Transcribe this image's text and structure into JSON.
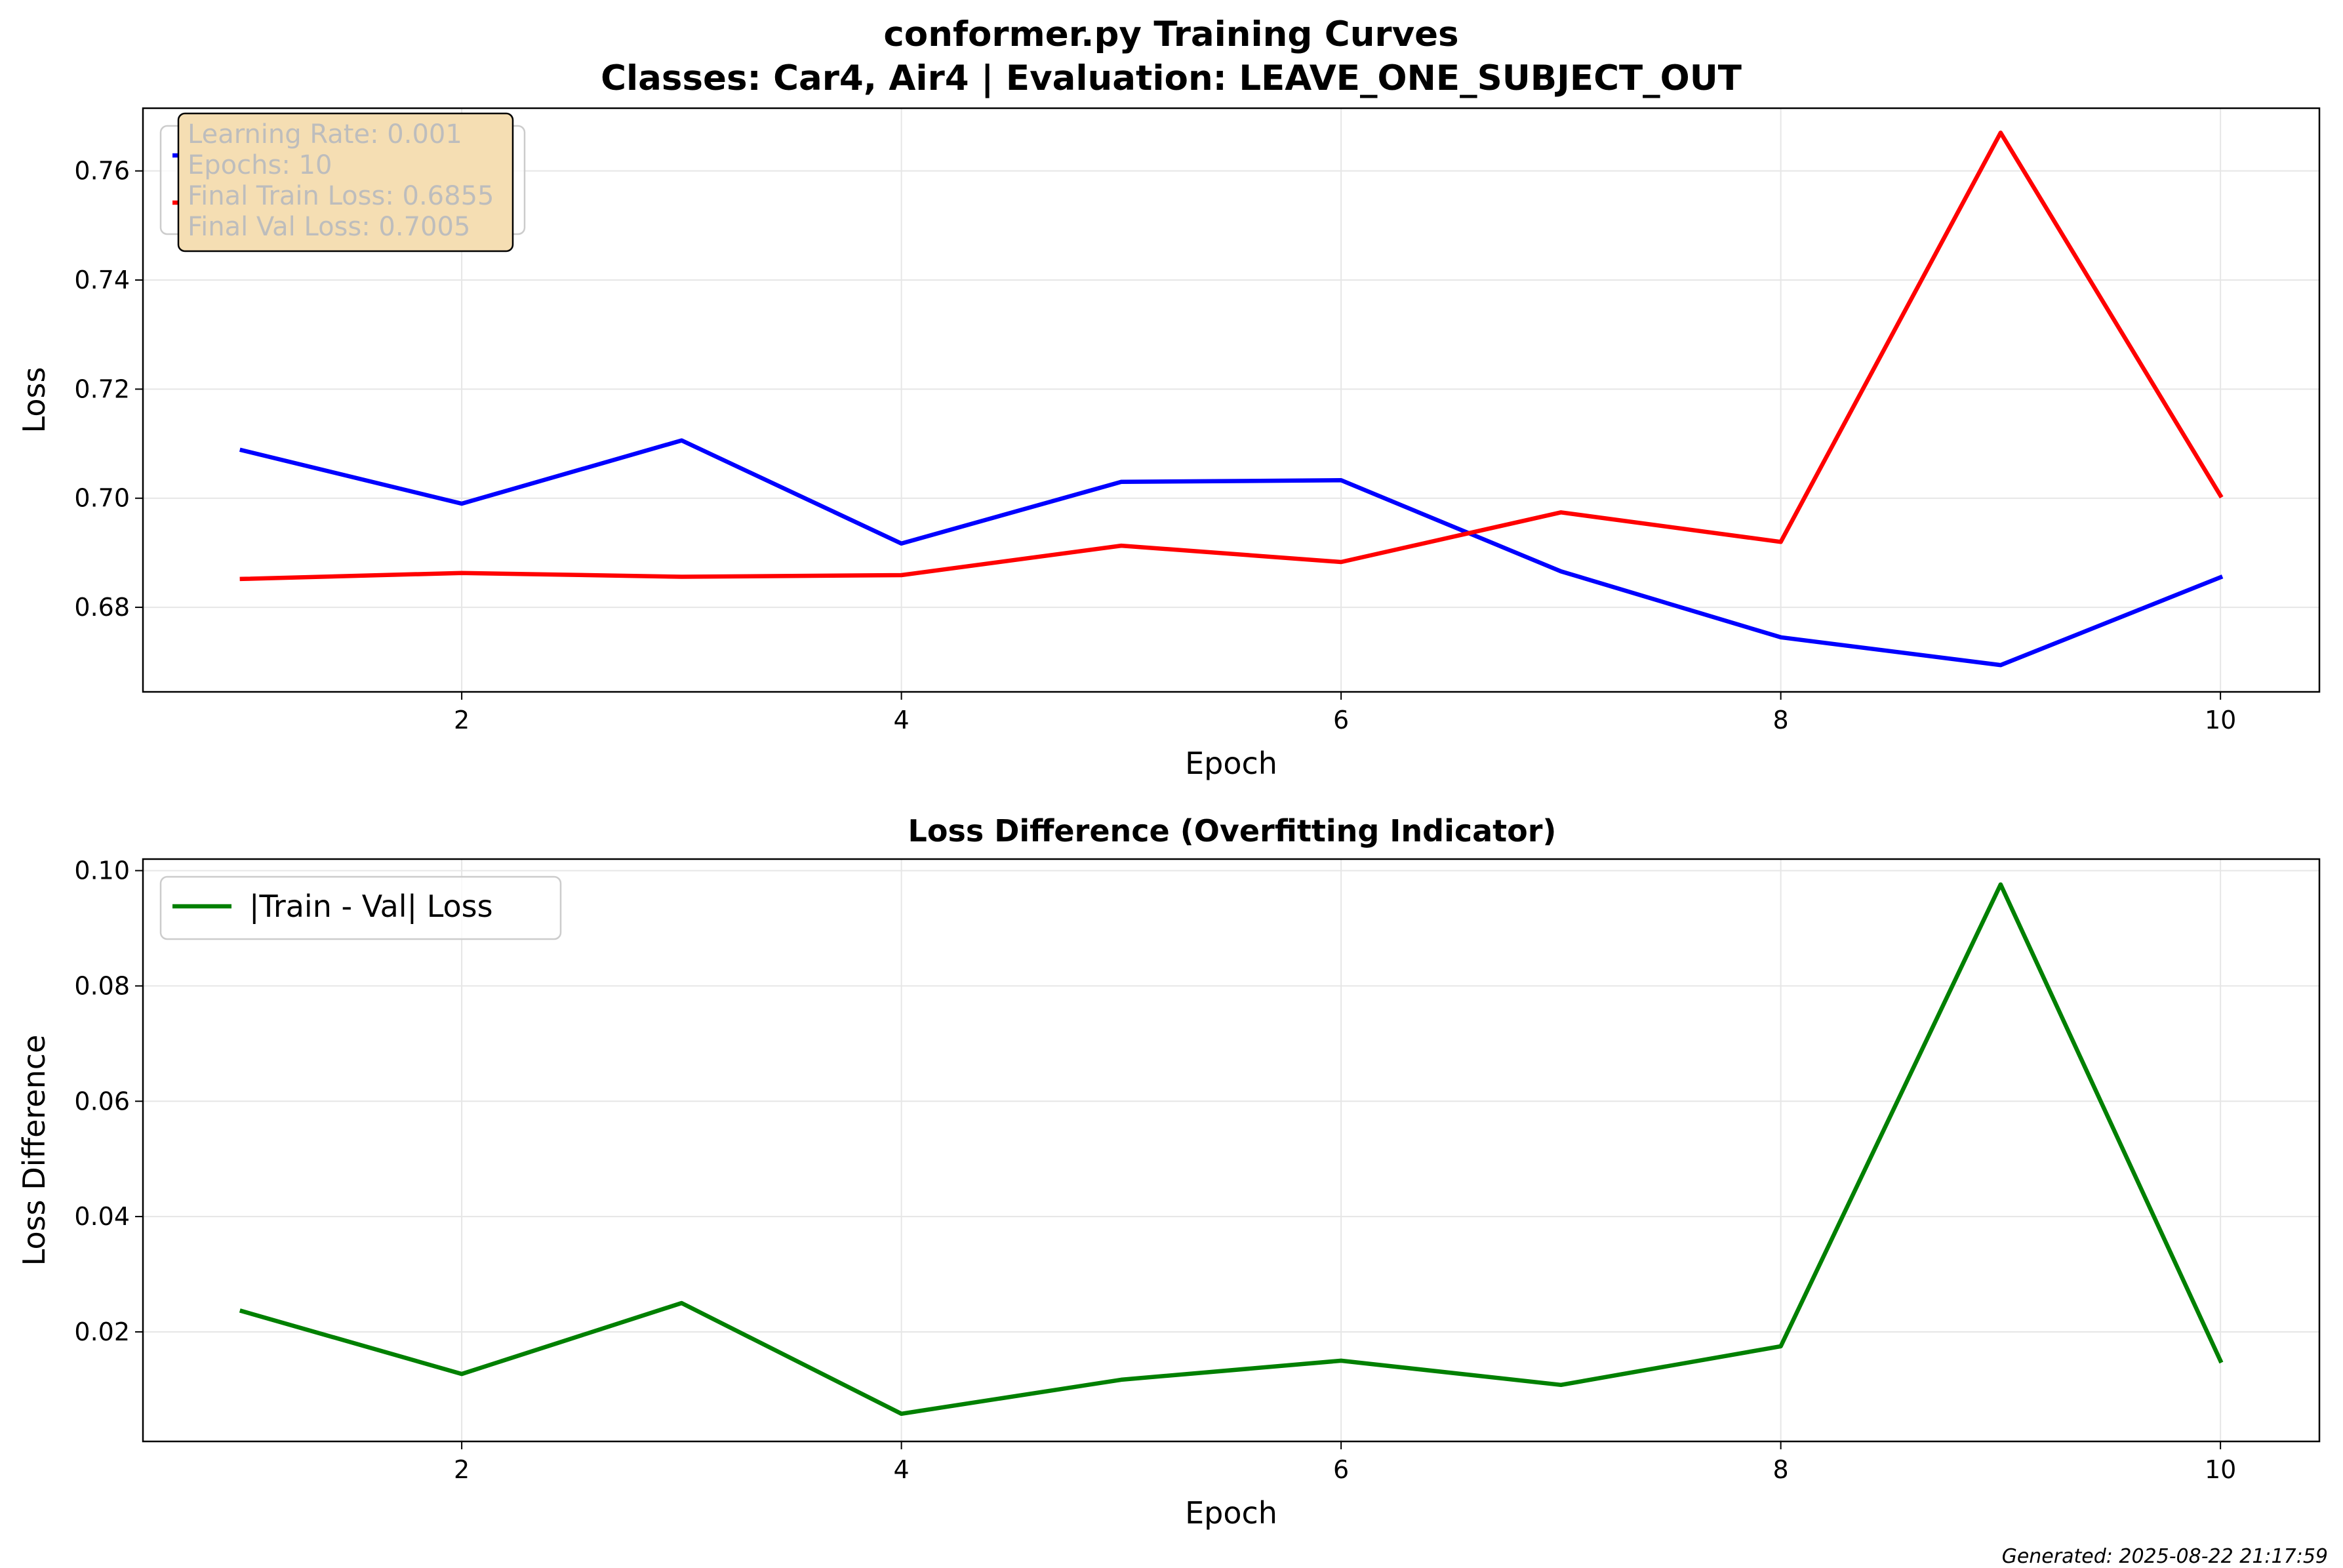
{
  "figure": {
    "title_line1": "conformer.py Training Curves",
    "title_line2": "Classes: Car4, Air4 | Evaluation: LEAVE_ONE_SUBJECT_OUT",
    "footer": "Generated: 2025-08-22 21:17:59"
  },
  "info_box": {
    "lines": [
      "Learning Rate: 0.001",
      "Epochs: 10",
      "Final Train Loss: 0.6855",
      "Final Val Loss: 0.7005"
    ],
    "background": "#f5deb3"
  },
  "chart_data": [
    {
      "type": "line",
      "title": "",
      "xlabel": "Epoch",
      "ylabel": "Loss",
      "xlim": [
        0.55,
        10.45
      ],
      "ylim": [
        0.6645,
        0.7715
      ],
      "xticks": [
        2,
        4,
        6,
        8,
        10
      ],
      "yticks": [
        0.68,
        0.7,
        0.72,
        0.74,
        0.76
      ],
      "ytick_labels": [
        "0.68",
        "0.70",
        "0.72",
        "0.74",
        "0.76"
      ],
      "grid": true,
      "legend": "upper-left",
      "x": [
        1,
        2,
        3,
        4,
        5,
        6,
        7,
        8,
        9,
        10
      ],
      "series": [
        {
          "name": "Training Loss",
          "color": "#0000ff",
          "values": [
            0.7088,
            0.699,
            0.7106,
            0.6917,
            0.703,
            0.7033,
            0.6866,
            0.6745,
            0.6694,
            0.6855
          ]
        },
        {
          "name": "Validation Loss",
          "color": "#ff0000",
          "values": [
            0.6852,
            0.6863,
            0.6856,
            0.6859,
            0.6913,
            0.6883,
            0.6974,
            0.692,
            0.767,
            0.7005
          ]
        }
      ]
    },
    {
      "type": "line",
      "title": "Loss Difference (Overfitting Indicator)",
      "xlabel": "Epoch",
      "ylabel": "Loss Difference",
      "xlim": [
        0.55,
        10.45
      ],
      "ylim": [
        0.001,
        0.102
      ],
      "xticks": [
        2,
        4,
        6,
        8,
        10
      ],
      "yticks": [
        0.02,
        0.04,
        0.06,
        0.08,
        0.1
      ],
      "ytick_labels": [
        "0.02",
        "0.04",
        "0.06",
        "0.08",
        "0.10"
      ],
      "grid": true,
      "legend": "upper-left",
      "x": [
        1,
        2,
        3,
        4,
        5,
        6,
        7,
        8,
        9,
        10
      ],
      "series": [
        {
          "name": "|Train - Val| Loss",
          "color": "#008000",
          "values": [
            0.0236,
            0.0127,
            0.025,
            0.0058,
            0.0117,
            0.015,
            0.0108,
            0.0175,
            0.0976,
            0.015
          ]
        }
      ]
    }
  ]
}
